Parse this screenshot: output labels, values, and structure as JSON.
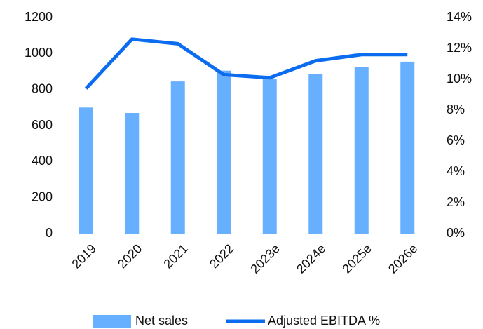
{
  "chart_data": {
    "type": "bar-line",
    "categories": [
      "2019",
      "2020",
      "2021",
      "2022",
      "2023e",
      "2024e",
      "2025e",
      "2026e"
    ],
    "series": [
      {
        "name": "Net sales",
        "color": "#66b0ff",
        "type": "bar",
        "values": [
          700,
          670,
          845,
          905,
          860,
          885,
          925,
          955
        ]
      },
      {
        "name": "Adjusted EBITDA %",
        "color": "#0b6cf0",
        "type": "line",
        "axis": "y2",
        "values": [
          9.4,
          12.6,
          12.3,
          10.3,
          10.1,
          11.2,
          11.6,
          11.6
        ]
      }
    ],
    "ylim": [
      0,
      1200
    ],
    "yticks": [
      0,
      200,
      400,
      600,
      800,
      1000,
      1200
    ],
    "y2lim": [
      0,
      14
    ],
    "y2ticks": [
      {
        "value": 0,
        "label": "0%"
      },
      {
        "value": 2,
        "label": "2%"
      },
      {
        "value": 4,
        "label": "4%"
      },
      {
        "value": 6,
        "label": "6%"
      },
      {
        "value": 8,
        "label": "8%"
      },
      {
        "value": 10,
        "label": "10%"
      },
      {
        "value": 12,
        "label": "12%"
      },
      {
        "value": 14,
        "label": "14%"
      }
    ],
    "grid": false,
    "legend": "bottom"
  }
}
